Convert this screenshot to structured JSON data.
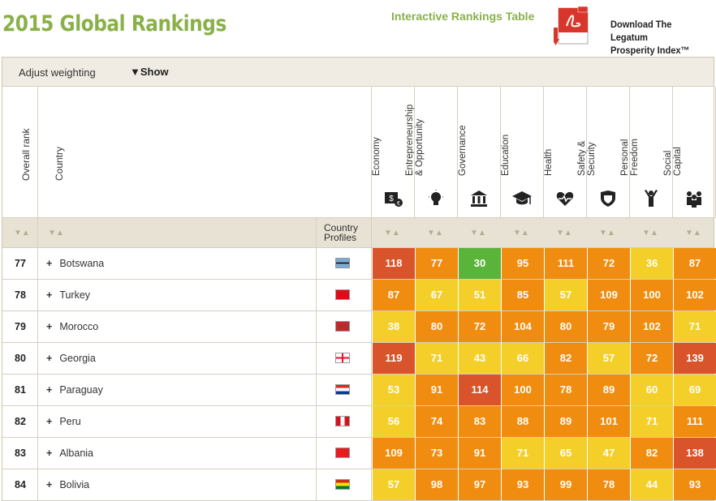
{
  "header": {
    "title": "2015 Global Rankings",
    "interactive_link": "Interactive Rankings Table",
    "download_line1": "Download The Legatum",
    "download_line2": "Prosperity Index™"
  },
  "weighting": {
    "label": "Adjust weighting",
    "toggle": "▼Show"
  },
  "columns": {
    "overall_rank": "Overall rank",
    "country": "Country",
    "profiles_line1": "Country",
    "profiles_line2": "Profiles",
    "sort_glyph": "▼▲"
  },
  "categories": [
    {
      "line1": "Economy",
      "line2": "",
      "icon": "economy-icon"
    },
    {
      "line1": "Entrepreneurship",
      "line2": "& Opportunity",
      "icon": "lightbulb-icon"
    },
    {
      "line1": "Governance",
      "line2": "",
      "icon": "government-building-icon"
    },
    {
      "line1": "Education",
      "line2": "",
      "icon": "graduation-cap-icon"
    },
    {
      "line1": "Health",
      "line2": "",
      "icon": "heart-pulse-icon"
    },
    {
      "line1": "Safety &",
      "line2": "Security",
      "icon": "shield-icon"
    },
    {
      "line1": "Personal",
      "line2": "Freedom",
      "icon": "raised-arms-icon"
    },
    {
      "line1": "Social",
      "line2": "Capital",
      "icon": "people-group-icon"
    }
  ],
  "colors": {
    "title_green": "#8ab04a",
    "dark_orange": "#d9532b",
    "orange": "#f08c0f",
    "yellow": "#f4cf2a",
    "green": "#5ab43a"
  },
  "rows": [
    {
      "rank": "77",
      "country": "Botswana",
      "flag": "botswana-flag",
      "scores": [
        [
          "118",
          "dark_orange"
        ],
        [
          "77",
          "orange"
        ],
        [
          "30",
          "green"
        ],
        [
          "95",
          "orange"
        ],
        [
          "111",
          "orange"
        ],
        [
          "72",
          "orange"
        ],
        [
          "36",
          "yellow"
        ],
        [
          "87",
          "orange"
        ]
      ]
    },
    {
      "rank": "78",
      "country": "Turkey",
      "flag": "turkey-flag",
      "scores": [
        [
          "87",
          "orange"
        ],
        [
          "67",
          "yellow"
        ],
        [
          "51",
          "yellow"
        ],
        [
          "85",
          "orange"
        ],
        [
          "57",
          "yellow"
        ],
        [
          "109",
          "orange"
        ],
        [
          "100",
          "orange"
        ],
        [
          "102",
          "orange"
        ]
      ]
    },
    {
      "rank": "79",
      "country": "Morocco",
      "flag": "morocco-flag",
      "scores": [
        [
          "38",
          "yellow"
        ],
        [
          "80",
          "orange"
        ],
        [
          "72",
          "orange"
        ],
        [
          "104",
          "orange"
        ],
        [
          "80",
          "orange"
        ],
        [
          "79",
          "orange"
        ],
        [
          "102",
          "orange"
        ],
        [
          "71",
          "yellow"
        ]
      ]
    },
    {
      "rank": "80",
      "country": "Georgia",
      "flag": "georgia-flag",
      "scores": [
        [
          "119",
          "dark_orange"
        ],
        [
          "71",
          "yellow"
        ],
        [
          "43",
          "yellow"
        ],
        [
          "66",
          "yellow"
        ],
        [
          "82",
          "orange"
        ],
        [
          "57",
          "yellow"
        ],
        [
          "72",
          "orange"
        ],
        [
          "139",
          "dark_orange"
        ]
      ]
    },
    {
      "rank": "81",
      "country": "Paraguay",
      "flag": "paraguay-flag",
      "scores": [
        [
          "53",
          "yellow"
        ],
        [
          "91",
          "orange"
        ],
        [
          "114",
          "dark_orange"
        ],
        [
          "100",
          "orange"
        ],
        [
          "78",
          "orange"
        ],
        [
          "89",
          "orange"
        ],
        [
          "60",
          "yellow"
        ],
        [
          "69",
          "yellow"
        ]
      ]
    },
    {
      "rank": "82",
      "country": "Peru",
      "flag": "peru-flag",
      "scores": [
        [
          "56",
          "yellow"
        ],
        [
          "74",
          "orange"
        ],
        [
          "83",
          "orange"
        ],
        [
          "88",
          "orange"
        ],
        [
          "89",
          "orange"
        ],
        [
          "101",
          "orange"
        ],
        [
          "71",
          "yellow"
        ],
        [
          "111",
          "orange"
        ]
      ]
    },
    {
      "rank": "83",
      "country": "Albania",
      "flag": "albania-flag",
      "scores": [
        [
          "109",
          "orange"
        ],
        [
          "73",
          "orange"
        ],
        [
          "91",
          "orange"
        ],
        [
          "71",
          "yellow"
        ],
        [
          "65",
          "yellow"
        ],
        [
          "47",
          "yellow"
        ],
        [
          "82",
          "orange"
        ],
        [
          "138",
          "dark_orange"
        ]
      ]
    },
    {
      "rank": "84",
      "country": "Bolivia",
      "flag": "bolivia-flag",
      "scores": [
        [
          "57",
          "yellow"
        ],
        [
          "98",
          "orange"
        ],
        [
          "97",
          "orange"
        ],
        [
          "93",
          "orange"
        ],
        [
          "99",
          "orange"
        ],
        [
          "78",
          "orange"
        ],
        [
          "44",
          "yellow"
        ],
        [
          "93",
          "orange"
        ]
      ]
    }
  ]
}
